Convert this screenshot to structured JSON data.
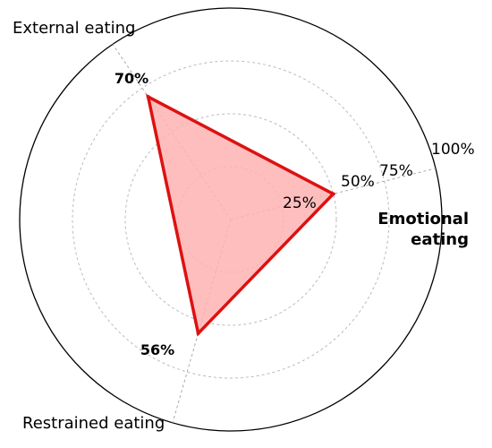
{
  "chart_data": {
    "type": "radar",
    "axes": [
      "Emotional eating",
      "External eating",
      "Restrained eating"
    ],
    "values": [
      50,
      70,
      56
    ],
    "value_labels": [
      "",
      "70%",
      "56%"
    ],
    "rmax": 100,
    "ticks": [
      25,
      50,
      75,
      100
    ],
    "tick_labels": [
      "25%",
      "50%",
      "75%",
      "100%"
    ],
    "grid": true,
    "fill_color": "#ffb3b3",
    "line_color": "#dd1111",
    "axis_label_lines": {
      "emotional": [
        "Emotional",
        "eating"
      ],
      "external": "External eating",
      "restrained": "Restrained eating"
    }
  }
}
